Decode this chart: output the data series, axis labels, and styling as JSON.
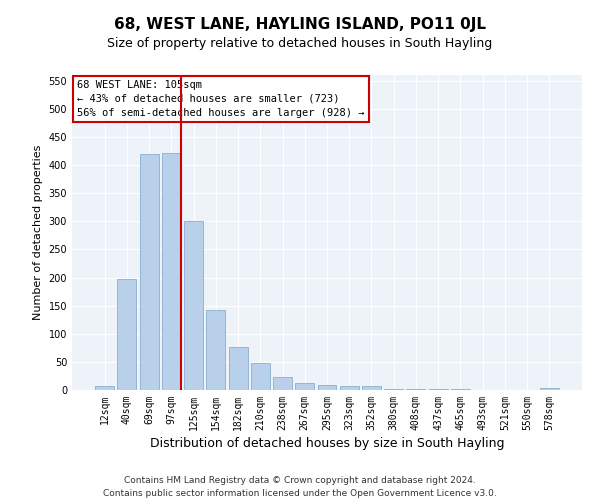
{
  "title": "68, WEST LANE, HAYLING ISLAND, PO11 0JL",
  "subtitle": "Size of property relative to detached houses in South Hayling",
  "xlabel": "Distribution of detached houses by size in South Hayling",
  "ylabel": "Number of detached properties",
  "categories": [
    "12sqm",
    "40sqm",
    "69sqm",
    "97sqm",
    "125sqm",
    "154sqm",
    "182sqm",
    "210sqm",
    "238sqm",
    "267sqm",
    "295sqm",
    "323sqm",
    "352sqm",
    "380sqm",
    "408sqm",
    "437sqm",
    "465sqm",
    "493sqm",
    "521sqm",
    "550sqm",
    "578sqm"
  ],
  "values": [
    8,
    198,
    420,
    422,
    300,
    142,
    77,
    48,
    24,
    12,
    9,
    7,
    8,
    2,
    1,
    1,
    1,
    0,
    0,
    0,
    3
  ],
  "bar_color": "#b8d0ea",
  "bar_edge_color": "#8ab0d0",
  "vline_color": "#cc0000",
  "annotation_title": "68 WEST LANE: 105sqm",
  "annotation_line1": "← 43% of detached houses are smaller (723)",
  "annotation_line2": "56% of semi-detached houses are larger (928) →",
  "annotation_box_color": "#ffffff",
  "annotation_box_edge": "#cc0000",
  "footer1": "Contains HM Land Registry data © Crown copyright and database right 2024.",
  "footer2": "Contains public sector information licensed under the Open Government Licence v3.0.",
  "ylim": [
    0,
    560
  ],
  "yticks": [
    0,
    50,
    100,
    150,
    200,
    250,
    300,
    350,
    400,
    450,
    500,
    550
  ],
  "bg_color": "#eef2f9",
  "fig_bg_color": "#ffffff",
  "title_fontsize": 11,
  "subtitle_fontsize": 9,
  "ylabel_fontsize": 8,
  "xlabel_fontsize": 9,
  "tick_fontsize": 7,
  "footer_fontsize": 6.5,
  "annotation_fontsize": 7.5,
  "vline_x_index": 3.42
}
